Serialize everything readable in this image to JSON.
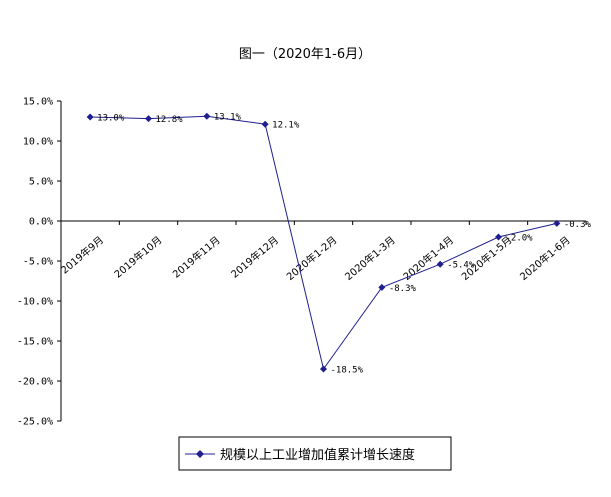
{
  "chart_data": {
    "type": "line",
    "title": "图一（2020年1-6月）",
    "categories": [
      "2019年9月",
      "2019年10月",
      "2019年11月",
      "2019年12月",
      "2020年1-2月",
      "2020年1-3月",
      "2020年1-4月",
      "2020年1-5月",
      "2020年1-6月"
    ],
    "series": [
      {
        "name": "规模以上工业增加值累计增长速度",
        "values": [
          13.0,
          12.8,
          13.1,
          12.1,
          -18.5,
          -8.3,
          -5.4,
          -2.0,
          -0.3
        ],
        "labels": [
          "13.0%",
          "12.8%",
          "13.1%",
          "12.1%",
          "-18.5%",
          "-8.3%",
          "-5.4%",
          "-2.0%",
          "-0.3%"
        ],
        "color": "#1F1F8F",
        "marker": "diamond"
      }
    ],
    "ylim": [
      -25,
      15
    ],
    "yticks": [
      15,
      10,
      5,
      0,
      -5,
      -10,
      -15,
      -20,
      -25
    ],
    "ytick_labels": [
      "15.0%",
      "10.0%",
      "5.0%",
      "0.0%",
      "-5.0%",
      "-10.0%",
      "-15.0%",
      "-20.0%",
      "-25.0%"
    ],
    "xlabel": "",
    "ylabel": "",
    "grid": false,
    "legend_position": "bottom"
  }
}
